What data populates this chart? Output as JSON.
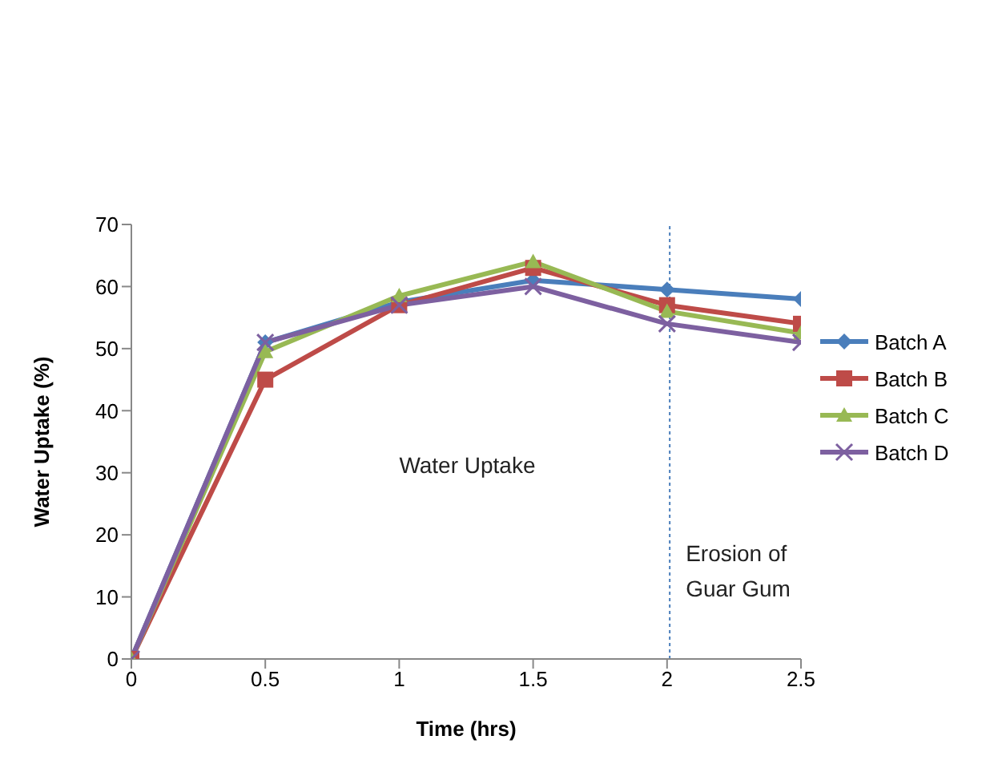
{
  "chart_data": {
    "type": "line",
    "xlabel": "Time (hrs)",
    "ylabel": "Water Uptake (%)",
    "x": [
      0,
      0.5,
      1,
      1.5,
      2,
      2.5
    ],
    "xlim": [
      0,
      2.5
    ],
    "xticks": [
      0,
      0.5,
      1,
      1.5,
      2,
      2.5
    ],
    "ylim": [
      0,
      70
    ],
    "yticks": [
      0,
      10,
      20,
      30,
      40,
      50,
      60,
      70
    ],
    "series": [
      {
        "name": "Batch A",
        "color": "#4a7ebb",
        "marker": "diamond",
        "values": [
          0,
          51,
          57.5,
          61,
          59.5,
          58
        ]
      },
      {
        "name": "Batch B",
        "color": "#be4b48",
        "marker": "square",
        "values": [
          0,
          45,
          57,
          63,
          57,
          54
        ]
      },
      {
        "name": "Batch C",
        "color": "#98b954",
        "marker": "triangle",
        "values": [
          0,
          49.5,
          58.5,
          64,
          56,
          52.5
        ]
      },
      {
        "name": "Batch D",
        "color": "#7d60a0",
        "marker": "cross",
        "values": [
          0,
          51,
          57,
          60,
          54,
          51
        ]
      }
    ],
    "ref_lines": [
      {
        "axis": "x",
        "value": 2.01,
        "color": "#4a7ebb",
        "line_style": "dotted"
      }
    ],
    "annotations": [
      "Water Uptake",
      "Erosion of\nGuar Gum"
    ],
    "grid": false,
    "legend": "right"
  }
}
